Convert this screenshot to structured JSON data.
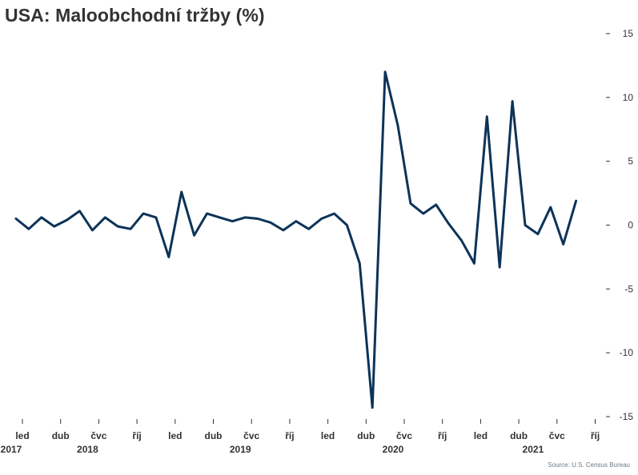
{
  "chart_data": {
    "type": "line",
    "title": "USA: Maloobchodní tržby (%)",
    "source": "Source: U.S. Census Bureau",
    "xlabel": "",
    "ylabel": "",
    "ylim": [
      -15,
      15
    ],
    "yticks": [
      15,
      10,
      5,
      0,
      -5,
      -10,
      -15
    ],
    "ytick_labels": [
      "15",
      "10",
      "5",
      "0",
      "-5",
      "-10",
      "-15"
    ],
    "grid": false,
    "line_color": "#0d3358",
    "month_ticks": [
      {
        "index": 0,
        "label": "led"
      },
      {
        "index": 3,
        "label": "dub"
      },
      {
        "index": 6,
        "label": "čvc"
      },
      {
        "index": 9,
        "label": "říj"
      },
      {
        "index": 12,
        "label": "led"
      },
      {
        "index": 15,
        "label": "dub"
      },
      {
        "index": 18,
        "label": "čvc"
      },
      {
        "index": 21,
        "label": "říj"
      },
      {
        "index": 24,
        "label": "led"
      },
      {
        "index": 27,
        "label": "dub"
      },
      {
        "index": 30,
        "label": "čvc"
      },
      {
        "index": 33,
        "label": "říj"
      },
      {
        "index": 36,
        "label": "led"
      },
      {
        "index": 39,
        "label": "dub"
      },
      {
        "index": 42,
        "label": "čvc"
      },
      {
        "index": 45,
        "label": "říj"
      }
    ],
    "year_labels": [
      {
        "index": 0,
        "label": "2017"
      },
      {
        "index": 6,
        "label": "2018"
      },
      {
        "index": 18,
        "label": "2019"
      },
      {
        "index": 30,
        "label": "2020"
      },
      {
        "index": 41,
        "label": "2021"
      }
    ],
    "series": [
      {
        "values": [
          0.5,
          -0.3,
          0.6,
          -0.1,
          0.4,
          1.1,
          -0.4,
          0.6,
          -0.1,
          -0.3,
          0.9,
          0.6,
          -2.5,
          2.6,
          -0.8,
          0.9,
          0.6,
          0.3,
          0.6,
          0.5,
          0.2,
          -0.4,
          0.3,
          -0.3,
          0.5,
          0.9,
          0.0,
          -3.0,
          -14.3,
          12.0,
          7.8,
          1.7,
          0.9,
          1.6,
          0.1,
          -1.2,
          -3.0,
          8.5,
          -3.3,
          9.7,
          0.0,
          -0.7,
          1.4,
          -1.5,
          1.9
        ]
      }
    ]
  }
}
